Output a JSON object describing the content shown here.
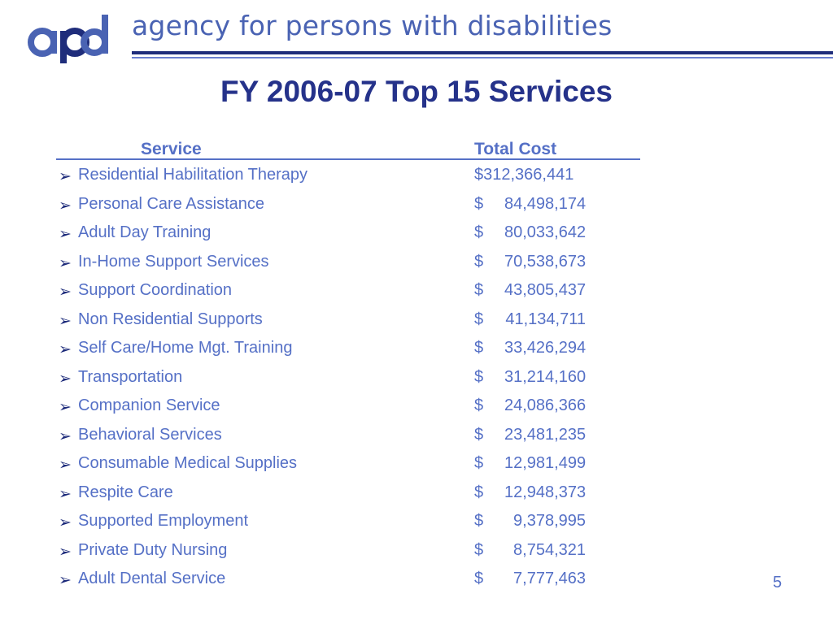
{
  "header": {
    "agency_name": "agency for persons with disabilities",
    "logo_icon": "apd-logo-icon",
    "logo_colors": {
      "primary": "#4a63b3",
      "accent": "#1f2d7b"
    }
  },
  "slide": {
    "title": "FY 2006-07 Top 15 Services",
    "page_number": "5"
  },
  "table": {
    "columns": {
      "service": "Service",
      "total_cost": "Total Cost"
    },
    "bullet_glyph": "➢",
    "rows": [
      {
        "service": "Residential Habilitation Therapy",
        "currency": "$",
        "amount": "312,366,441"
      },
      {
        "service": "Personal Care Assistance",
        "currency": "$",
        "amount": "84,498,174"
      },
      {
        "service": "Adult Day Training",
        "currency": "$",
        "amount": "80,033,642"
      },
      {
        "service": "In-Home Support Services",
        "currency": "$",
        "amount": "70,538,673"
      },
      {
        "service": "Support Coordination",
        "currency": "$",
        "amount": "43,805,437"
      },
      {
        "service": "Non Residential Supports",
        "currency": "$",
        "amount": "41,134,711"
      },
      {
        "service": "Self Care/Home Mgt. Training",
        "currency": "$",
        "amount": "33,426,294"
      },
      {
        "service": "Transportation",
        "currency": "$",
        "amount": "31,214,160"
      },
      {
        "service": "Companion Service",
        "currency": "$",
        "amount": "24,086,366"
      },
      {
        "service": "Behavioral Services",
        "currency": "$",
        "amount": "23,481,235"
      },
      {
        "service": "Consumable Medical Supplies",
        "currency": "$",
        "amount": "12,981,499"
      },
      {
        "service": "Respite Care",
        "currency": "$",
        "amount": "12,948,373"
      },
      {
        "service": "Supported Employment",
        "currency": "$",
        "amount": "9,378,995"
      },
      {
        "service": "Private Duty Nursing",
        "currency": "$",
        "amount": "8,754,321"
      },
      {
        "service": "Adult Dental Service",
        "currency": "$",
        "amount": "7,777,463"
      }
    ]
  }
}
